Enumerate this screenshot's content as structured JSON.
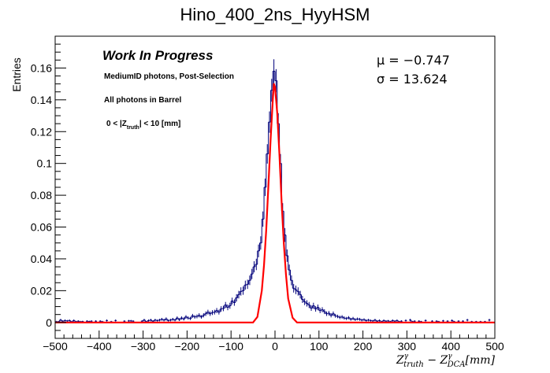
{
  "chart_data": {
    "type": "histogram",
    "title": "Hino_400_2ns_HyyHSM",
    "ylabel": "Entries",
    "xlabel": {
      "text": "Z",
      "sup1": "γ",
      "sub1": "truth",
      "minus": " − Z",
      "sup2": "γ",
      "sub2": "DCA",
      "unit": "[mm]"
    },
    "xlim": [
      -500,
      500
    ],
    "ylim": [
      -0.01,
      0.18
    ],
    "x_ticks": [
      -500,
      -400,
      -300,
      -200,
      -100,
      0,
      100,
      200,
      300,
      400,
      500
    ],
    "y_ticks": [
      0,
      0.02,
      0.04,
      0.06,
      0.08,
      0.1,
      0.12,
      0.14,
      0.16
    ],
    "x_tick_labels": [
      "−500",
      "−400",
      "−300",
      "−200",
      "−100",
      "0",
      "100",
      "200",
      "300",
      "400",
      "500"
    ],
    "y_tick_labels": [
      "0",
      "0.02",
      "0.04",
      "0.06",
      "0.08",
      "0.1",
      "0.12",
      "0.14",
      "0.16"
    ],
    "annotations": {
      "work_in_progress": "Work In Progress",
      "selection": "MediumID photons, Post-Selection",
      "region": "All photons in Barrel",
      "cut_prefix": "0 < |Z",
      "cut_sub": "truth",
      "cut_suffix": "| < 10 [mm]",
      "mu": "μ = −0.747",
      "sigma": "σ = 13.624"
    },
    "series": [
      {
        "type": "histogram",
        "color": "#00007a",
        "bin_width": 5,
        "bin_centers": [
          -497.5,
          -492.5,
          -487.5,
          -482.5,
          -477.5,
          -472.5,
          -467.5,
          -462.5,
          -457.5,
          -452.5,
          -447.5,
          -442.5,
          -437.5,
          -432.5,
          -427.5,
          -422.5,
          -417.5,
          -412.5,
          -407.5,
          -402.5,
          -397.5,
          -392.5,
          -387.5,
          -382.5,
          -377.5,
          -372.5,
          -367.5,
          -362.5,
          -357.5,
          -352.5,
          -347.5,
          -342.5,
          -337.5,
          -332.5,
          -327.5,
          -322.5,
          -317.5,
          -312.5,
          -307.5,
          -302.5,
          -297.5,
          -292.5,
          -287.5,
          -282.5,
          -277.5,
          -272.5,
          -267.5,
          -262.5,
          -257.5,
          -252.5,
          -247.5,
          -242.5,
          -237.5,
          -232.5,
          -227.5,
          -222.5,
          -217.5,
          -212.5,
          -207.5,
          -202.5,
          -197.5,
          -192.5,
          -187.5,
          -182.5,
          -177.5,
          -172.5,
          -167.5,
          -162.5,
          -157.5,
          -152.5,
          -147.5,
          -142.5,
          -137.5,
          -132.5,
          -127.5,
          -122.5,
          -117.5,
          -112.5,
          -107.5,
          -102.5,
          -97.5,
          -92.5,
          -87.5,
          -82.5,
          -77.5,
          -72.5,
          -67.5,
          -62.5,
          -57.5,
          -52.5,
          -47.5,
          -42.5,
          -37.5,
          -32.5,
          -27.5,
          -22.5,
          -17.5,
          -12.5,
          -7.5,
          -2.5,
          2.5,
          7.5,
          12.5,
          17.5,
          22.5,
          27.5,
          32.5,
          37.5,
          42.5,
          47.5,
          52.5,
          57.5,
          62.5,
          67.5,
          72.5,
          77.5,
          82.5,
          87.5,
          92.5,
          97.5,
          102.5,
          107.5,
          112.5,
          117.5,
          122.5,
          127.5,
          132.5,
          137.5,
          142.5,
          147.5,
          152.5,
          157.5,
          162.5,
          167.5,
          172.5,
          177.5,
          182.5,
          187.5,
          192.5,
          197.5,
          202.5,
          207.5,
          212.5,
          217.5,
          222.5,
          227.5,
          232.5,
          237.5,
          242.5,
          247.5,
          252.5,
          257.5,
          262.5,
          267.5,
          272.5,
          277.5,
          282.5,
          287.5,
          292.5,
          297.5,
          302.5,
          307.5,
          312.5,
          317.5,
          322.5,
          327.5,
          332.5,
          337.5,
          342.5,
          347.5,
          352.5,
          357.5,
          362.5,
          367.5,
          372.5,
          377.5,
          382.5,
          387.5,
          392.5,
          397.5,
          402.5,
          407.5,
          412.5,
          417.5,
          422.5,
          427.5,
          432.5,
          437.5,
          442.5,
          447.5,
          452.5,
          457.5,
          462.5,
          467.5,
          472.5,
          477.5,
          482.5,
          487.5,
          492.5,
          497.5
        ],
        "values": [
          0.0005,
          0.0005,
          0.0015,
          0.0008,
          0.0012,
          0.001,
          0.0012,
          0.0005,
          0.0012,
          0.0005,
          0.0008,
          0.0005,
          0.0006,
          0.0,
          0.0008,
          0.0006,
          0.0008,
          0.0,
          0.0008,
          0.0,
          0.0008,
          0.0005,
          0.0,
          0.0012,
          0.0,
          0.0005,
          0.0,
          0.0012,
          0.0,
          0.0,
          0.0,
          0.0008,
          0.0,
          0.001,
          0.001,
          0.0008,
          0.0,
          0.0,
          0.0,
          0.0008,
          0.0015,
          0.0005,
          0.0012,
          0.0015,
          0.0008,
          0.0015,
          0.0012,
          0.0015,
          0.002,
          0.0015,
          0.0022,
          0.0012,
          0.0015,
          0.002,
          0.0015,
          0.0028,
          0.0018,
          0.0028,
          0.0022,
          0.0035,
          0.0028,
          0.0025,
          0.0042,
          0.0035,
          0.0038,
          0.0045,
          0.0035,
          0.0045,
          0.0055,
          0.0065,
          0.0055,
          0.0062,
          0.0065,
          0.0075,
          0.0065,
          0.0085,
          0.0088,
          0.011,
          0.0095,
          0.0105,
          0.0135,
          0.0125,
          0.0155,
          0.0175,
          0.0195,
          0.02,
          0.0235,
          0.024,
          0.0265,
          0.0305,
          0.035,
          0.0365,
          0.045,
          0.05,
          0.065,
          0.085,
          0.106,
          0.126,
          0.146,
          0.158,
          0.152,
          0.125,
          0.1,
          0.07,
          0.055,
          0.042,
          0.033,
          0.0265,
          0.0215,
          0.0205,
          0.0195,
          0.0175,
          0.0145,
          0.013,
          0.012,
          0.011,
          0.009,
          0.0105,
          0.0085,
          0.0095,
          0.0075,
          0.008,
          0.0068,
          0.0055,
          0.0058,
          0.0045,
          0.0055,
          0.0042,
          0.0038,
          0.0032,
          0.0035,
          0.0028,
          0.0025,
          0.003,
          0.002,
          0.0025,
          0.0018,
          0.0022,
          0.002,
          0.0015,
          0.0018,
          0.0012,
          0.0015,
          0.0012,
          0.001,
          0.0015,
          0.0008,
          0.0012,
          0.0005,
          0.0012,
          0.0008,
          0.001,
          0.0005,
          0.0012,
          0.0008,
          0.0012,
          0.0005,
          0.0008,
          0.0,
          0.0012,
          0.0,
          0.0015,
          0.0005,
          0.0008,
          0.0,
          0.0008,
          0.0005,
          0.0,
          0.0012,
          0.0,
          0.0,
          0.0008,
          0.0,
          0.0008,
          0.0005,
          0.0,
          0.001,
          0.0,
          0.0008,
          0.0,
          0.0012,
          0.0005,
          0.0,
          0.0008,
          0.0,
          0.0008,
          0.0,
          0.0015,
          0.0,
          0.0005,
          0.0,
          0.0005,
          0.0,
          0.0005,
          0.0,
          0.0005,
          0.0,
          0.0015
        ],
        "errors": [
          0.0005,
          0.0005,
          0.0008,
          0.0006,
          0.0007,
          0.0006,
          0.0007,
          0.0005,
          0.0007,
          0.0005,
          0.0006,
          0.0005,
          0.0005,
          0.0,
          0.0006,
          0.0005,
          0.0006,
          0.0,
          0.0006,
          0.0,
          0.0006,
          0.0005,
          0.0,
          0.0007,
          0.0,
          0.0005,
          0.0,
          0.0007,
          0.0,
          0.0,
          0.0,
          0.0006,
          0.0,
          0.0006,
          0.0006,
          0.0006,
          0.0,
          0.0,
          0.0,
          0.0006,
          0.0008,
          0.0005,
          0.0007,
          0.0008,
          0.0006,
          0.0008,
          0.0007,
          0.0008,
          0.0009,
          0.0008,
          0.001,
          0.0007,
          0.0008,
          0.0009,
          0.0008,
          0.001,
          0.0009,
          0.001,
          0.001,
          0.0011,
          0.001,
          0.001,
          0.0012,
          0.0011,
          0.0012,
          0.0013,
          0.0011,
          0.0013,
          0.0014,
          0.0015,
          0.0014,
          0.0015,
          0.0015,
          0.0016,
          0.0015,
          0.0017,
          0.0017,
          0.0019,
          0.0018,
          0.0019,
          0.0021,
          0.002,
          0.0023,
          0.0024,
          0.0026,
          0.0026,
          0.0028,
          0.0029,
          0.003,
          0.0032,
          0.0035,
          0.0036,
          0.004,
          0.0042,
          0.0048,
          0.0055,
          0.0061,
          0.0067,
          0.0072,
          0.0075,
          0.0073,
          0.0066,
          0.0059,
          0.005,
          0.0044,
          0.0039,
          0.0034,
          0.0031,
          0.0027,
          0.0027,
          0.0026,
          0.0024,
          0.0022,
          0.0021,
          0.002,
          0.0019,
          0.0017,
          0.0019,
          0.0017,
          0.0018,
          0.0016,
          0.0016,
          0.0015,
          0.0014,
          0.0014,
          0.0013,
          0.0014,
          0.0012,
          0.0011,
          0.0011,
          0.0011,
          0.001,
          0.001,
          0.001,
          0.0009,
          0.001,
          0.0008,
          0.0009,
          0.0009,
          0.0008,
          0.0008,
          0.0007,
          0.0008,
          0.0007,
          0.0006,
          0.0008,
          0.0006,
          0.0007,
          0.0005,
          0.0007,
          0.0006,
          0.0006,
          0.0005,
          0.0007,
          0.0006,
          0.0007,
          0.0005,
          0.0006,
          0.0,
          0.0007,
          0.0,
          0.0008,
          0.0005,
          0.0006,
          0.0,
          0.0006,
          0.0005,
          0.0,
          0.0007,
          0.0,
          0.0,
          0.0006,
          0.0,
          0.0006,
          0.0005,
          0.0,
          0.0006,
          0.0,
          0.0006,
          0.0,
          0.0007,
          0.0005,
          0.0,
          0.0006,
          0.0,
          0.0006,
          0.0,
          0.0008,
          0.0,
          0.0005,
          0.0,
          0.0005,
          0.0,
          0.0005,
          0.0,
          0.0005,
          0.0,
          0.0008
        ]
      },
      {
        "type": "line",
        "color": "#ff0000",
        "x": [
          -500,
          -50,
          -40,
          -30,
          -25,
          -20,
          -15,
          -10,
          -5,
          -2.5,
          0,
          5,
          10,
          15,
          20,
          25,
          30,
          40,
          50,
          500
        ],
        "y": [
          0,
          0,
          0.0035,
          0.02,
          0.036,
          0.058,
          0.086,
          0.115,
          0.14,
          0.15,
          0.148,
          0.132,
          0.106,
          0.076,
          0.05,
          0.03,
          0.015,
          0.003,
          0,
          0
        ]
      }
    ]
  }
}
